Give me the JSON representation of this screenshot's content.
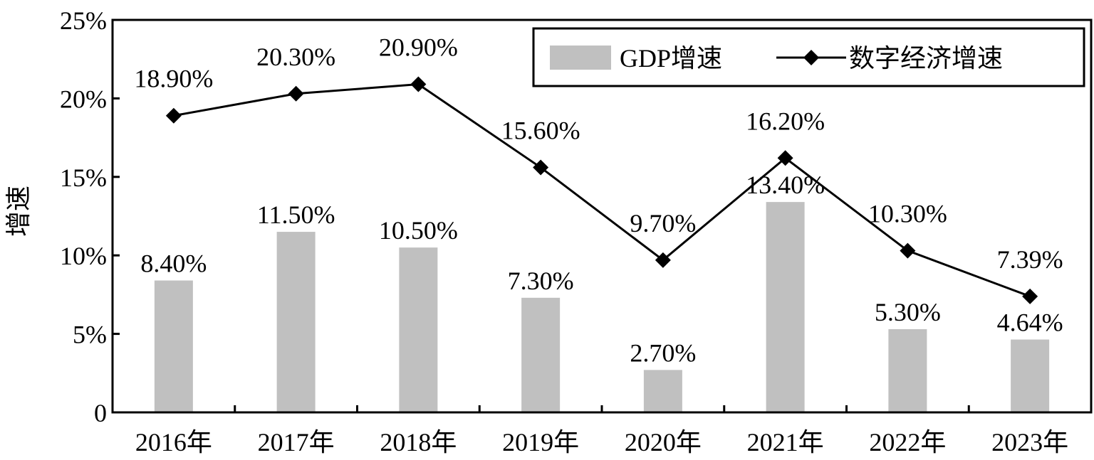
{
  "chart_data": {
    "type": "bar+line",
    "categories": [
      "2016年",
      "2017年",
      "2018年",
      "2019年",
      "2020年",
      "2021年",
      "2022年",
      "2023年"
    ],
    "series": [
      {
        "name": "GDP增速",
        "kind": "bar",
        "color": "#c0c0c0",
        "values": [
          8.4,
          11.5,
          10.5,
          7.3,
          2.7,
          13.4,
          5.3,
          4.64
        ],
        "labels": [
          "8.40%",
          "11.50%",
          "10.50%",
          "7.30%",
          "2.70%",
          "13.40%",
          "5.30%",
          "4.64%"
        ]
      },
      {
        "name": "数字经济增速",
        "kind": "line",
        "marker": "diamond",
        "color": "#000000",
        "values": [
          18.9,
          20.3,
          20.9,
          15.6,
          9.7,
          16.2,
          10.3,
          7.39
        ],
        "labels": [
          "18.90%",
          "20.30%",
          "20.90%",
          "15.60%",
          "9.70%",
          "16.20%",
          "10.30%",
          "7.39%"
        ]
      }
    ],
    "ylabel": "增速",
    "xlabel": "",
    "ylim": [
      0,
      25
    ],
    "yticks": [
      0,
      5,
      10,
      15,
      20,
      25
    ],
    "ytick_labels": [
      "0",
      "5%",
      "10%",
      "15%",
      "20%",
      "25%"
    ],
    "grid": false,
    "legend": "top-right"
  }
}
